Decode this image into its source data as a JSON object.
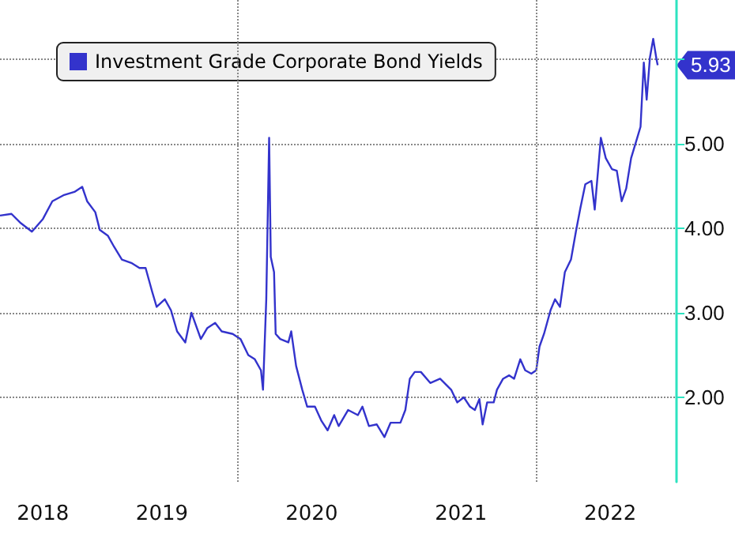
{
  "chart_data": {
    "type": "line",
    "legend": "top left",
    "grid": "y",
    "line_style": "solid",
    "marker": "none",
    "xlim": [
      "2018-05-31",
      "2022-12-10"
    ],
    "xticks": [
      {
        "value": "2018-09-13",
        "label": "2018"
      },
      {
        "value": "2019-07-01",
        "label": "2019"
      },
      {
        "value": "2020-07-01",
        "label": "2020"
      },
      {
        "value": "2021-07-01",
        "label": "2021"
      },
      {
        "value": "2022-07-01",
        "label": "2022"
      }
    ],
    "ylim": [
      1.0,
      6.7
    ],
    "yticks": [
      {
        "value": 2,
        "label": "2.00"
      },
      {
        "value": 3,
        "label": "3.00"
      },
      {
        "value": 4,
        "label": "4.00"
      },
      {
        "value": 5,
        "label": "5.00"
      },
      {
        "value": 6,
        "label": null
      }
    ],
    "ref_lines": [
      {
        "axis": "x",
        "value": "2020-01-01",
        "color": "#888888",
        "line_style": "dotted"
      },
      {
        "axis": "x",
        "value": "2022-01-01",
        "color": "#888888",
        "line_style": "dotted"
      }
    ],
    "annotations": [
      "5.93"
    ],
    "series": [
      {
        "name": "Investment Grade Corporate Bond Yields",
        "color": "#3333cc",
        "x": [
          "2018-05-31",
          "2018-06-28",
          "2018-07-21",
          "2018-08-17",
          "2018-09-13",
          "2018-10-06",
          "2018-11-02",
          "2018-11-29",
          "2018-12-18",
          "2018-12-30",
          "2019-01-19",
          "2019-01-30",
          "2019-02-19",
          "2019-03-06",
          "2019-03-25",
          "2019-04-17",
          "2019-05-07",
          "2019-05-22",
          "2019-06-07",
          "2019-06-18",
          "2019-07-08",
          "2019-07-23",
          "2019-08-07",
          "2019-08-27",
          "2019-09-11",
          "2019-10-04",
          "2019-10-20",
          "2019-11-08",
          "2019-11-24",
          "2019-12-21",
          "2020-01-09",
          "2020-01-28",
          "2020-02-13",
          "2020-02-28",
          "2020-03-04",
          "2020-03-12",
          "2020-03-19",
          "2020-03-23",
          "2020-03-31",
          "2020-04-04",
          "2020-04-15",
          "2020-05-05",
          "2020-05-12",
          "2020-05-24",
          "2020-06-08",
          "2020-06-20",
          "2020-07-09",
          "2020-07-25",
          "2020-08-09",
          "2020-08-25",
          "2020-09-05",
          "2020-09-28",
          "2020-10-22",
          "2020-11-02",
          "2020-11-18",
          "2020-12-07",
          "2020-12-26",
          "2021-01-10",
          "2021-02-03",
          "2021-02-15",
          "2021-02-26",
          "2021-03-10",
          "2021-03-25",
          "2021-04-17",
          "2021-05-11",
          "2021-06-07",
          "2021-06-22",
          "2021-07-08",
          "2021-07-23",
          "2021-08-04",
          "2021-08-15",
          "2021-08-23",
          "2021-09-03",
          "2021-09-19",
          "2021-09-27",
          "2021-10-12",
          "2021-10-27",
          "2021-11-08",
          "2021-11-23",
          "2021-12-05",
          "2021-12-20",
          "2022-01-01",
          "2022-01-09",
          "2022-01-20",
          "2022-02-05",
          "2022-02-16",
          "2022-02-28",
          "2022-03-12",
          "2022-03-27",
          "2022-04-08",
          "2022-04-19",
          "2022-05-01",
          "2022-05-16",
          "2022-05-24",
          "2022-06-08",
          "2022-06-20",
          "2022-07-05",
          "2022-07-17",
          "2022-07-29",
          "2022-08-09",
          "2022-08-21",
          "2022-09-05",
          "2022-09-13",
          "2022-09-21",
          "2022-09-28",
          "2022-10-06",
          "2022-10-14",
          "2022-10-22",
          "2022-10-25"
        ],
        "values": [
          4.15,
          4.17,
          4.06,
          3.96,
          4.11,
          4.32,
          4.39,
          4.43,
          4.49,
          4.32,
          4.19,
          3.98,
          3.91,
          3.78,
          3.63,
          3.59,
          3.53,
          3.53,
          3.25,
          3.07,
          3.16,
          3.03,
          2.78,
          2.65,
          3.0,
          2.69,
          2.82,
          2.88,
          2.78,
          2.75,
          2.69,
          2.5,
          2.45,
          2.32,
          2.09,
          3.16,
          5.07,
          3.66,
          3.48,
          2.75,
          2.69,
          2.65,
          2.78,
          2.37,
          2.09,
          1.89,
          1.89,
          1.72,
          1.61,
          1.79,
          1.66,
          1.85,
          1.79,
          1.89,
          1.66,
          1.68,
          1.53,
          1.7,
          1.7,
          1.85,
          2.22,
          2.3,
          2.3,
          2.17,
          2.22,
          2.09,
          1.94,
          2.0,
          1.89,
          1.85,
          1.98,
          1.68,
          1.94,
          1.94,
          2.09,
          2.22,
          2.26,
          2.22,
          2.45,
          2.32,
          2.28,
          2.32,
          2.6,
          2.75,
          3.03,
          3.16,
          3.07,
          3.48,
          3.63,
          3.96,
          4.24,
          4.52,
          4.56,
          4.22,
          5.07,
          4.83,
          4.7,
          4.68,
          4.32,
          4.47,
          4.83,
          5.07,
          5.2,
          5.96,
          5.52,
          6.02,
          6.24,
          6.0,
          5.93
        ]
      }
    ]
  }
}
